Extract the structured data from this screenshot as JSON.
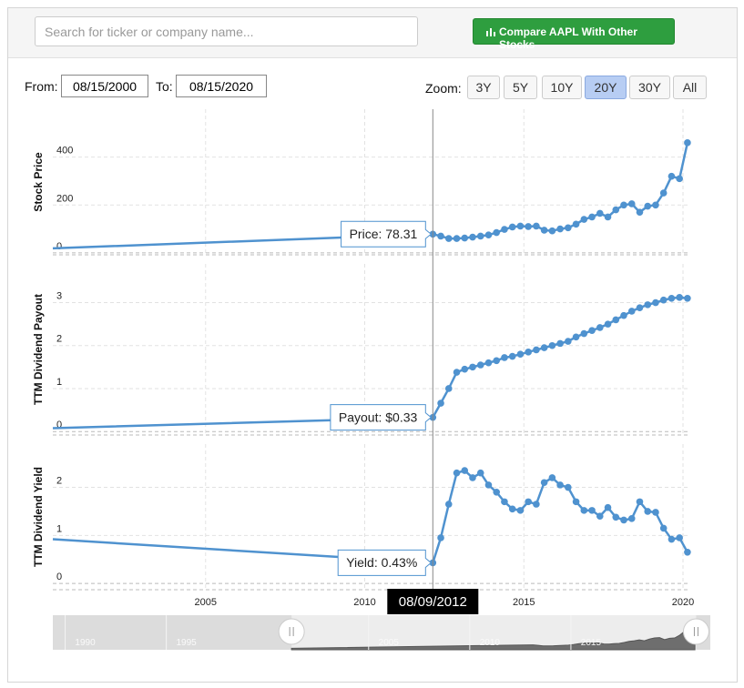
{
  "search_placeholder": "Search for ticker or company name...",
  "compare_button": "Compare AAPL With Other Stocks",
  "from_label": "From:",
  "from_date": "08/15/2000",
  "to_label": "To:",
  "to_date": "08/15/2020",
  "zoom_label": "Zoom:",
  "zoom_options": [
    "3Y",
    "5Y",
    "10Y",
    "20Y",
    "30Y",
    "All"
  ],
  "zoom_selected": "20Y",
  "crosshair_label": "08/09/2012",
  "navigator": {
    "xlim": [
      1988.4,
      2020.9
    ],
    "xticks": [
      1990,
      1995,
      2005,
      2010,
      2015
    ]
  },
  "chart_data": [
    {
      "type": "line",
      "y_label": "Stock Price",
      "tooltip": "Price: 78.31",
      "color": "#4f92cf",
      "xlim": [
        2000.2,
        2020.2
      ],
      "xticks": [
        2005,
        2010,
        2015,
        2020
      ],
      "ylim": [
        -8,
        600
      ],
      "yticks": [
        0,
        200,
        400
      ],
      "grid": true,
      "x": [
        2000.2,
        2012.14,
        2012.39,
        2012.64,
        2012.89,
        2013.14,
        2013.39,
        2013.64,
        2013.89,
        2014.14,
        2014.39,
        2014.64,
        2014.89,
        2015.14,
        2015.39,
        2015.64,
        2015.89,
        2016.14,
        2016.39,
        2016.64,
        2016.89,
        2017.14,
        2017.39,
        2017.64,
        2017.89,
        2018.14,
        2018.39,
        2018.64,
        2018.89,
        2019.14,
        2019.39,
        2019.64,
        2019.89,
        2020.14
      ],
      "values": [
        19,
        78.31,
        70,
        60,
        60,
        62,
        66,
        70,
        75,
        85,
        98,
        108,
        112,
        110,
        112,
        95,
        92,
        100,
        105,
        120,
        140,
        150,
        165,
        150,
        180,
        200,
        205,
        170,
        195,
        200,
        250,
        320,
        310,
        460
      ]
    },
    {
      "type": "line",
      "y_label": "TTM Dividend Payout",
      "tooltip": "Payout: $0.33",
      "color": "#4f92cf",
      "xlim": [
        2000.2,
        2020.2
      ],
      "xticks": [
        2005,
        2010,
        2015,
        2020
      ],
      "ylim": [
        -0.08,
        3.9
      ],
      "yticks": [
        0,
        1,
        2,
        3
      ],
      "grid": true,
      "x": [
        2000.2,
        2012.14,
        2012.39,
        2012.64,
        2012.89,
        2013.14,
        2013.39,
        2013.64,
        2013.89,
        2014.14,
        2014.39,
        2014.64,
        2014.89,
        2015.14,
        2015.39,
        2015.64,
        2015.89,
        2016.14,
        2016.39,
        2016.64,
        2016.89,
        2017.14,
        2017.39,
        2017.64,
        2017.89,
        2018.14,
        2018.39,
        2018.64,
        2018.89,
        2019.14,
        2019.39,
        2019.64,
        2019.89,
        2020.14
      ],
      "values": [
        0.08,
        0.33,
        0.66,
        1.0,
        1.38,
        1.45,
        1.5,
        1.55,
        1.6,
        1.65,
        1.72,
        1.75,
        1.8,
        1.85,
        1.9,
        1.95,
        2.0,
        2.05,
        2.1,
        2.2,
        2.28,
        2.35,
        2.42,
        2.5,
        2.6,
        2.7,
        2.8,
        2.88,
        2.95,
        3.0,
        3.06,
        3.1,
        3.12,
        3.1
      ]
    },
    {
      "type": "line",
      "y_label": "TTM Dividend Yield",
      "tooltip": "Yield: 0.43%",
      "color": "#4f92cf",
      "xlim": [
        2000.2,
        2020.2
      ],
      "xticks": [
        2005,
        2010,
        2015,
        2020
      ],
      "ylim": [
        -0.13,
        2.9
      ],
      "yticks": [
        0,
        1,
        2
      ],
      "grid": true,
      "x": [
        2000.2,
        2012.14,
        2012.39,
        2012.64,
        2012.89,
        2013.14,
        2013.39,
        2013.64,
        2013.89,
        2014.14,
        2014.39,
        2014.64,
        2014.89,
        2015.14,
        2015.39,
        2015.64,
        2015.89,
        2016.14,
        2016.39,
        2016.64,
        2016.89,
        2017.14,
        2017.39,
        2017.64,
        2017.89,
        2018.14,
        2018.39,
        2018.64,
        2018.89,
        2019.14,
        2019.39,
        2019.64,
        2019.89,
        2020.14
      ],
      "values": [
        0.92,
        0.43,
        0.95,
        1.65,
        2.3,
        2.35,
        2.2,
        2.3,
        2.05,
        1.9,
        1.7,
        1.55,
        1.52,
        1.7,
        1.65,
        2.1,
        2.2,
        2.05,
        2.0,
        1.7,
        1.52,
        1.52,
        1.4,
        1.58,
        1.38,
        1.32,
        1.35,
        1.7,
        1.5,
        1.48,
        1.15,
        0.92,
        0.95,
        0.65
      ]
    }
  ]
}
